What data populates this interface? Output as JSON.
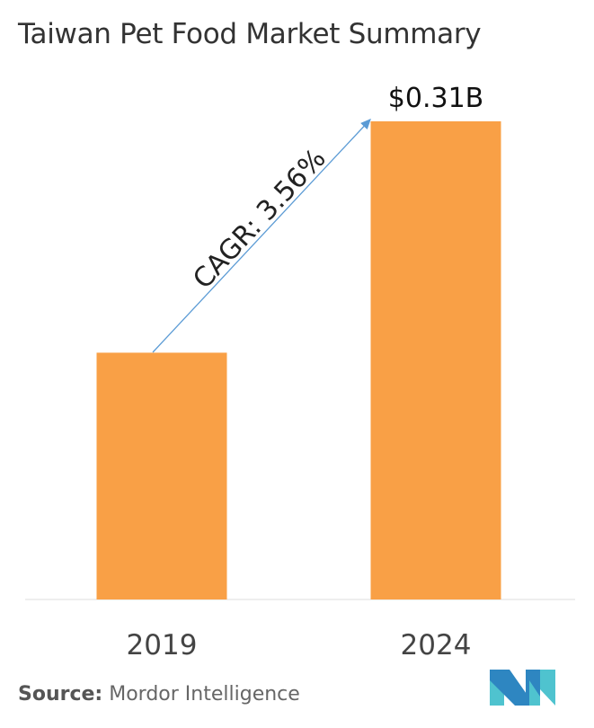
{
  "chart_data": {
    "type": "bar",
    "title": "Taiwan Pet Food Market Summary",
    "categories": [
      "2019",
      "2024"
    ],
    "values": [
      0.16,
      0.31
    ],
    "data_labels": [
      "",
      "$0.31B"
    ],
    "unit": "USD billion",
    "annotation": "CAGR: 3.56%",
    "xlabel": "",
    "ylabel": "",
    "ylim": [
      0,
      0.31
    ],
    "grid": false,
    "bar_color": "#F9A046",
    "arrow_color": "#5B9BD5"
  },
  "source": {
    "label": "Source:",
    "value": "Mordor Intelligence"
  },
  "logo": {
    "text": "Mordor Intelligence"
  }
}
